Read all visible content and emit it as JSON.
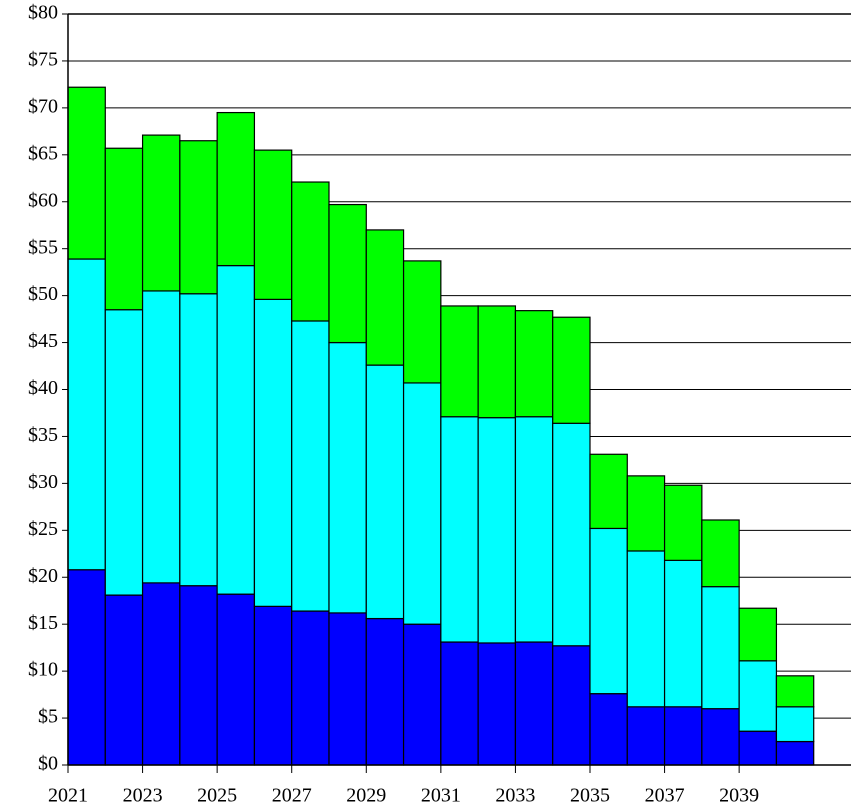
{
  "chart_data": {
    "type": "stacked_bar",
    "x": [
      2021,
      2022,
      2023,
      2024,
      2025,
      2026,
      2027,
      2028,
      2029,
      2030,
      2031,
      2032,
      2033,
      2034,
      2035,
      2036,
      2037,
      2038,
      2039,
      2040
    ],
    "xlim": [
      2021,
      2042
    ],
    "xticks": [
      2021,
      2023,
      2025,
      2027,
      2029,
      2031,
      2033,
      2035,
      2037,
      2039
    ],
    "ylim": [
      0,
      80
    ],
    "yticks": [
      {
        "value": 0,
        "label": "$0"
      },
      {
        "value": 5,
        "label": "$5"
      },
      {
        "value": 10,
        "label": "$10"
      },
      {
        "value": 15,
        "label": "$15"
      },
      {
        "value": 20,
        "label": "$20"
      },
      {
        "value": 25,
        "label": "$25"
      },
      {
        "value": 30,
        "label": "$30"
      },
      {
        "value": 35,
        "label": "$35"
      },
      {
        "value": 40,
        "label": "$40"
      },
      {
        "value": 45,
        "label": "$45"
      },
      {
        "value": 50,
        "label": "$50"
      },
      {
        "value": 55,
        "label": "$55"
      },
      {
        "value": 60,
        "label": "$60"
      },
      {
        "value": 65,
        "label": "$65"
      },
      {
        "value": 70,
        "label": "$70"
      },
      {
        "value": 75,
        "label": "$75"
      },
      {
        "value": 80,
        "label": "$80"
      }
    ],
    "grid": true,
    "series": [
      {
        "color": "#0000ff",
        "values": [
          20.8,
          18.1,
          19.4,
          19.1,
          18.2,
          16.9,
          16.4,
          16.2,
          15.6,
          15.0,
          13.1,
          13.0,
          13.1,
          12.7,
          7.6,
          6.2,
          6.2,
          6.0,
          3.6,
          2.5
        ]
      },
      {
        "color": "#00ffff",
        "values": [
          33.1,
          30.4,
          31.1,
          31.1,
          35.0,
          32.7,
          30.9,
          28.8,
          27.0,
          25.7,
          24.0,
          24.0,
          24.0,
          23.7,
          17.6,
          16.6,
          15.6,
          13.0,
          7.5,
          3.7
        ]
      },
      {
        "color": "#00ff00",
        "values": [
          18.3,
          17.2,
          16.6,
          16.3,
          16.3,
          15.9,
          14.8,
          14.7,
          14.4,
          13.0,
          11.8,
          11.9,
          11.3,
          11.3,
          7.9,
          8.0,
          8.0,
          7.1,
          5.6,
          3.3
        ]
      }
    ]
  }
}
